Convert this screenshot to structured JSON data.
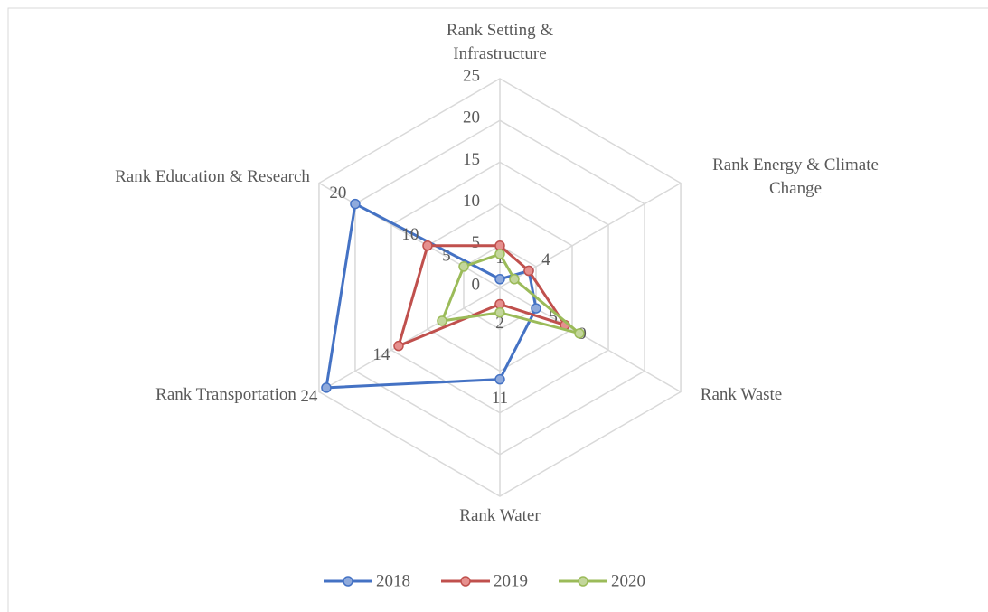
{
  "chart_data": {
    "type": "radar",
    "categories": [
      "Rank Setting & Infrastructure",
      "Rank Energy & Climate Change",
      "Rank Waste",
      "Rank Water",
      "Rank Transportation",
      "Rank Education & Research"
    ],
    "rlim": [
      0,
      25
    ],
    "rticks": [
      0,
      5,
      10,
      15,
      20,
      25
    ],
    "grid": true,
    "legend": "bottom",
    "series": [
      {
        "name": "2018",
        "color": "#4472c4",
        "values": [
          1,
          4,
          5,
          11,
          24,
          20
        ],
        "value_labels": [
          "1",
          "4",
          "5",
          "11",
          "24",
          "20"
        ]
      },
      {
        "name": "2019",
        "color": "#c0504d",
        "values": [
          5,
          4,
          9,
          2,
          14,
          10
        ],
        "value_labels": [
          null,
          null,
          "9",
          "2",
          "14",
          "10"
        ]
      },
      {
        "name": "2020",
        "color": "#9bbb59",
        "values": [
          4,
          2,
          11,
          3,
          8,
          5
        ],
        "value_labels": [
          null,
          null,
          null,
          null,
          null,
          "5"
        ]
      }
    ]
  }
}
